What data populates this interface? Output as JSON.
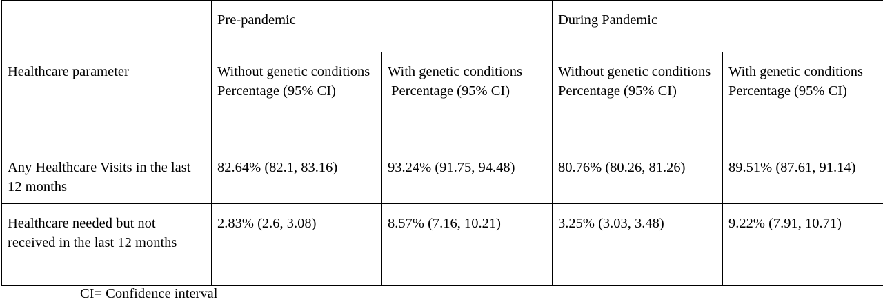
{
  "table": {
    "group_headers": [
      "",
      "Pre-pandemic",
      "During Pandemic"
    ],
    "column_headers": [
      "Healthcare parameter",
      "Without genetic conditions\nPercentage (95% CI)",
      "With genetic conditions\n Percentage (95% CI)",
      "Without genetic conditions\nPercentage (95% CI)",
      "With genetic conditions\nPercentage (95% CI)"
    ],
    "rows": [
      {
        "parameter": "Any Healthcare Visits in the last 12 months",
        "values": [
          "82.64% (82.1, 83.16)",
          "93.24% (91.75, 94.48)",
          "80.76% (80.26, 81.26)",
          "89.51% (87.61, 91.14)"
        ]
      },
      {
        "parameter": "Healthcare needed but not received in the last 12 months",
        "values": [
          "2.83% (2.6, 3.08)",
          "8.57% (7.16, 10.21)",
          "3.25% (3.03, 3.48)",
          "9.22% (7.91, 10.71)"
        ]
      }
    ]
  },
  "footnote": "CI= Confidence interval"
}
